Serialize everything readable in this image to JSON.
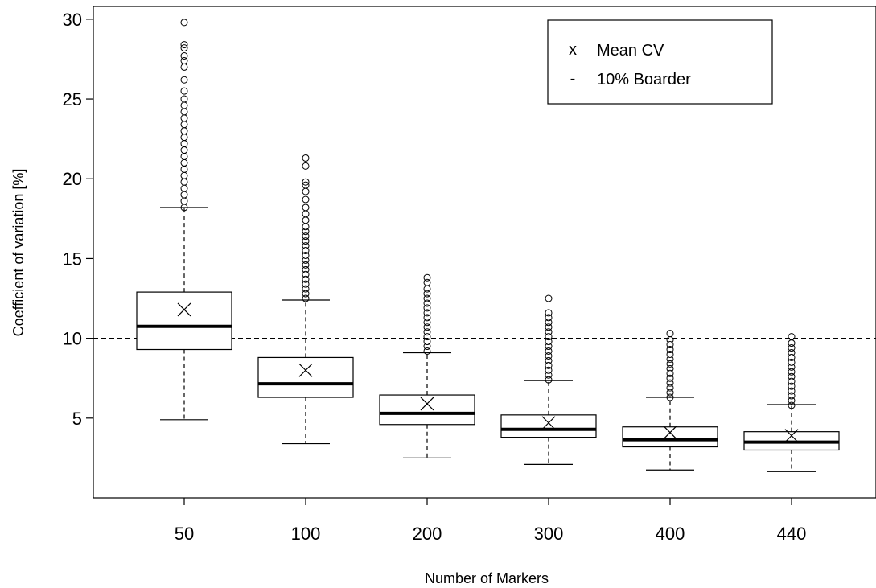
{
  "chart_data": {
    "type": "box",
    "xlabel": "Number of Markers",
    "ylabel": "Coefficient of variation [%]",
    "ylim": [
      0,
      30.8
    ],
    "yticks": [
      5,
      10,
      15,
      20,
      25,
      30
    ],
    "categories": [
      "50",
      "100",
      "200",
      "300",
      "400",
      "440"
    ],
    "boxes": [
      {
        "whisker_low": 4.9,
        "q1": 9.3,
        "median": 10.75,
        "q3": 12.9,
        "whisker_high": 18.2,
        "mean": 11.8,
        "outliers": [
          18.2,
          18.6,
          19.0,
          19.4,
          19.8,
          20.2,
          20.6,
          21.0,
          21.4,
          21.8,
          22.2,
          22.6,
          23.0,
          23.4,
          23.8,
          24.2,
          24.6,
          25.0,
          25.5,
          26.2,
          27.0,
          27.4,
          27.7,
          28.2,
          28.4,
          29.8
        ]
      },
      {
        "whisker_low": 3.4,
        "q1": 6.3,
        "median": 7.15,
        "q3": 8.8,
        "whisker_high": 12.4,
        "mean": 8.0,
        "outliers": [
          12.5,
          12.8,
          13.1,
          13.4,
          13.7,
          14.0,
          14.3,
          14.6,
          14.9,
          15.2,
          15.5,
          15.8,
          16.1,
          16.4,
          16.7,
          17.0,
          17.4,
          17.8,
          18.2,
          18.7,
          19.2,
          19.6,
          19.8,
          20.8,
          21.3
        ]
      },
      {
        "whisker_low": 2.5,
        "q1": 4.6,
        "median": 5.3,
        "q3": 6.45,
        "whisker_high": 9.1,
        "mean": 5.9,
        "outliers": [
          9.2,
          9.5,
          9.8,
          10.1,
          10.4,
          10.7,
          11.0,
          11.3,
          11.6,
          11.9,
          12.2,
          12.5,
          12.8,
          13.1,
          13.5,
          13.8
        ]
      },
      {
        "whisker_low": 2.1,
        "q1": 3.8,
        "median": 4.3,
        "q3": 5.2,
        "whisker_high": 7.35,
        "mean": 4.7,
        "outliers": [
          7.4,
          7.7,
          8.0,
          8.3,
          8.6,
          8.9,
          9.2,
          9.5,
          9.8,
          10.1,
          10.4,
          10.7,
          11.0,
          11.3,
          11.6,
          12.5
        ]
      },
      {
        "whisker_low": 1.75,
        "q1": 3.2,
        "median": 3.65,
        "q3": 4.45,
        "whisker_high": 6.3,
        "mean": 4.1,
        "outliers": [
          6.3,
          6.6,
          6.9,
          7.2,
          7.5,
          7.8,
          8.1,
          8.4,
          8.7,
          9.0,
          9.3,
          9.6,
          9.9,
          10.3
        ]
      },
      {
        "whisker_low": 1.65,
        "q1": 3.0,
        "median": 3.5,
        "q3": 4.15,
        "whisker_high": 5.85,
        "mean": 3.9,
        "outliers": [
          5.8,
          6.1,
          6.4,
          6.7,
          7.0,
          7.3,
          7.6,
          7.9,
          8.2,
          8.5,
          8.8,
          9.1,
          9.4,
          9.7,
          10.1
        ]
      }
    ],
    "reference_line": {
      "y": 10,
      "style": "dashed"
    },
    "legend": {
      "position": "top-right",
      "entries": [
        {
          "symbol": "x",
          "label": "Mean CV"
        },
        {
          "symbol": "-",
          "label": "10% Boarder"
        }
      ]
    }
  }
}
